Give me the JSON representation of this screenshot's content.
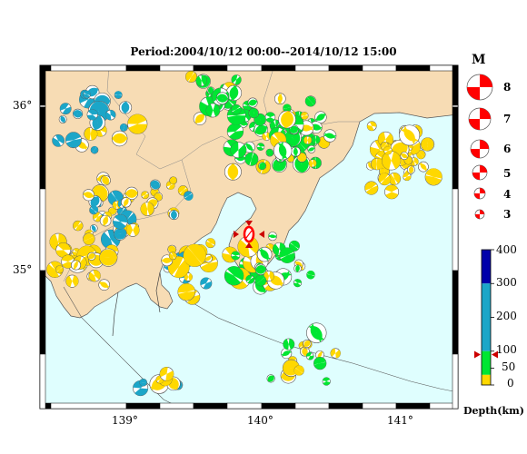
{
  "title": "Period:2004/10/12 00:00--2014/10/12 15:00",
  "lat_ticks": [
    "36°",
    "35°"
  ],
  "lon_ticks": [
    "139°",
    "140°",
    "141°"
  ],
  "magnitude_legend": {
    "header": "M",
    "levels": [
      "8",
      "7",
      "6",
      "5",
      "4",
      "3"
    ]
  },
  "depth_legend": {
    "title": "Depth(km)",
    "ticks": [
      "400",
      "300",
      "200",
      "100",
      "50",
      "0"
    ],
    "colors": [
      "#0000aa",
      "#1ba6c8",
      "#00e632",
      "#ffd800"
    ],
    "marker_depth": 90
  },
  "colors": {
    "sea": "#dffefe",
    "land": "#f7dcb4",
    "shallow": "#ffd800",
    "mid": "#00e632",
    "deep": "#1ba6c8",
    "highlight": "#ff0000"
  }
}
